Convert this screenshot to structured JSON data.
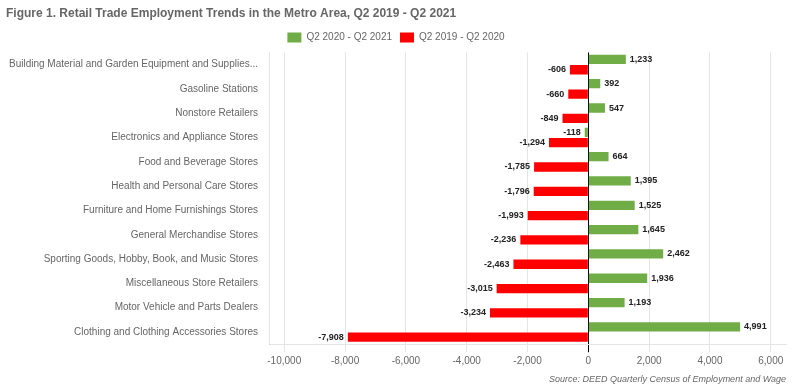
{
  "chart_data": {
    "type": "bar",
    "orientation": "horizontal",
    "title": "Figure 1. Retail Trade Employment Trends in the Metro Area, Q2 2019 - Q2 2021",
    "annotation": "Source: DEED Quarterly Census of Employment and Wage",
    "categories": [
      "Clothing and Clothing Accessories Stores",
      "Motor Vehicle and Parts Dealers",
      "Miscellaneous Store Retailers",
      "Sporting Goods, Hobby, Book, and Music Stores",
      "General Merchandise Stores",
      "Furniture and Home Furnishings Stores",
      "Health and Personal Care Stores",
      "Food and Beverage Stores",
      "Electronics and Appliance Stores",
      "Nonstore Retailers",
      "Gasoline Stations",
      "Building Material and Garden Equipment and Supplies..."
    ],
    "series": [
      {
        "name": "Q2 2020 - Q2 2021",
        "color": "#70AD47",
        "values": [
          4991,
          1193,
          1936,
          2462,
          1645,
          1525,
          1395,
          664,
          -118,
          547,
          392,
          1233
        ],
        "value_labels": [
          "4,991",
          "1,193",
          "1,936",
          "2,462",
          "1,645",
          "1,525",
          "1,395",
          "664",
          "-118",
          "547",
          "392",
          "1,233"
        ]
      },
      {
        "name": "Q2 2019 - Q2 2020",
        "color": "#FF0000",
        "values": [
          -7908,
          -3234,
          -3015,
          -2463,
          -2236,
          -1993,
          -1796,
          -1785,
          -1294,
          -849,
          -660,
          -606
        ],
        "value_labels": [
          "-7,908",
          "-3,234",
          "-3,015",
          "-2,463",
          "-2,236",
          "-1,993",
          "-1,796",
          "-1,785",
          "-1,294",
          "-849",
          "-660",
          "-606"
        ]
      }
    ],
    "xlim": [
      -10500,
      6500
    ],
    "xticks": [
      {
        "value": -10000,
        "label": "-10,000"
      },
      {
        "value": -8000,
        "label": "-8,000"
      },
      {
        "value": -6000,
        "label": "-6,000"
      },
      {
        "value": -4000,
        "label": "-4,000"
      },
      {
        "value": -2000,
        "label": "-2,000"
      },
      0,
      {
        "value": 2000,
        "label": "2,000"
      },
      {
        "value": 4000,
        "label": "4,000"
      },
      {
        "value": 6000,
        "label": "6,000"
      }
    ],
    "grid": true,
    "legend": "top",
    "data_labels": true
  }
}
